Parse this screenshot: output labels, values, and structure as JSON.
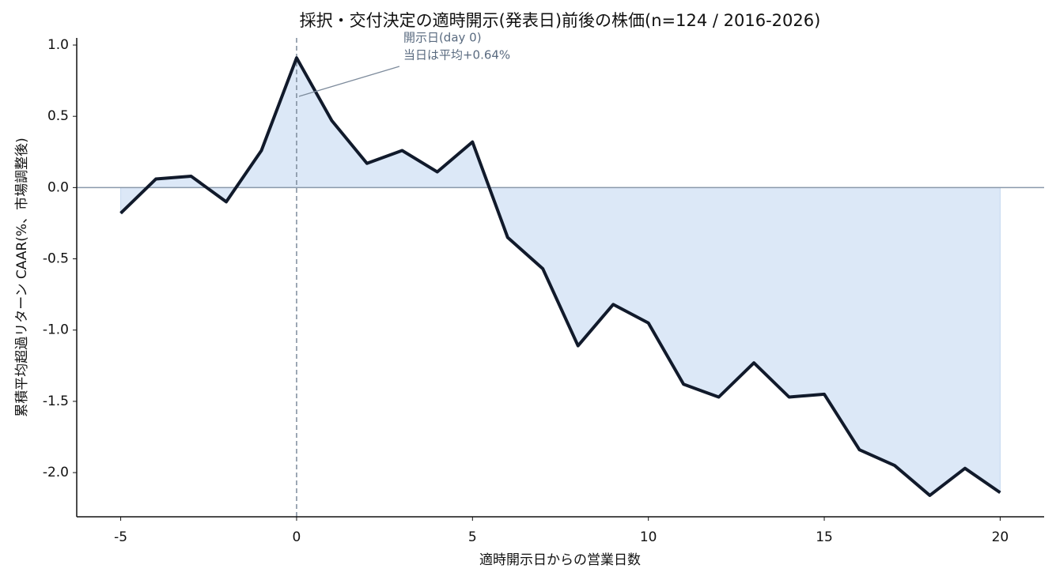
{
  "chart_data": {
    "type": "line",
    "title": "採択・交付決定の適時開示(発表日)前後の株価(n=124 / 2016-2026)",
    "x_label": "適時開示日からの営業日数",
    "y_label": "累積平均超過リターン CAAR(%、市場調整後)",
    "x": [
      -5,
      -4,
      -3,
      -2,
      -1,
      0,
      1,
      2,
      3,
      4,
      5,
      6,
      7,
      8,
      9,
      10,
      11,
      12,
      13,
      14,
      15,
      16,
      17,
      18,
      19,
      20
    ],
    "series": [
      {
        "name": "CAAR",
        "color": "#111a2b",
        "fill_color": "#dce8f7",
        "values": [
          -0.18,
          0.06,
          0.08,
          -0.1,
          0.26,
          0.91,
          0.47,
          0.17,
          0.26,
          0.11,
          0.32,
          -0.35,
          -0.57,
          -1.11,
          -0.82,
          -0.95,
          -1.38,
          -1.47,
          -1.23,
          -1.47,
          -1.45,
          -1.84,
          -1.95,
          -2.16,
          -1.97,
          -2.14
        ]
      }
    ],
    "xlim": [
      -6.25,
      21.25
    ],
    "ylim": [
      -2.31,
      1.05
    ],
    "xticks": [
      -5,
      0,
      5,
      10,
      15,
      20
    ],
    "yticks": [
      {
        "value": -2,
        "label": "-2.0"
      },
      -1.5,
      {
        "value": -1,
        "label": "-1.0"
      },
      -0.5,
      {
        "value": 0,
        "label": "0.0"
      },
      0.5,
      {
        "value": 1,
        "label": "1.0"
      }
    ],
    "hline": 0,
    "vline": 0,
    "grid": false,
    "annotation": {
      "lines": [
        "開示日(day 0)",
        "当日は平均+0.64%"
      ],
      "x": 0,
      "y": 0.64
    }
  }
}
